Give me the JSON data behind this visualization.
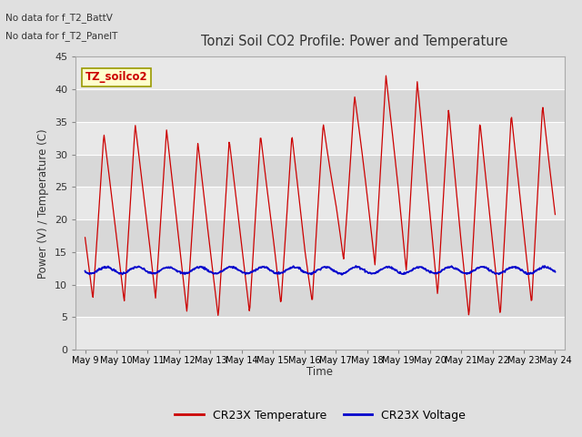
{
  "title": "Tonzi Soil CO2 Profile: Power and Temperature",
  "ylabel": "Power (V) / Temperature (C)",
  "xlabel": "Time",
  "ylim": [
    0,
    45
  ],
  "yticks": [
    0,
    5,
    10,
    15,
    20,
    25,
    30,
    35,
    40,
    45
  ],
  "no_data_text1": "No data for f_T2_BattV",
  "no_data_text2": "No data for f_T2_PanelT",
  "legend_label_red": "CR23X Temperature",
  "legend_label_blue": "CR23X Voltage",
  "box_label": "TZ_soilco2",
  "x_tick_labels": [
    "May 9",
    "May 10",
    "May 11",
    "May 12",
    "May 13",
    "May 14",
    "May 15",
    "May 16",
    "May 17",
    "May 18",
    "May 19",
    "May 20",
    "May 21",
    "May 22",
    "May 23",
    "May 24"
  ],
  "bg_color": "#e0e0e0",
  "plot_bg_light": "#e8e8e8",
  "plot_bg_dark": "#d8d8d8",
  "grid_color": "#ffffff",
  "temp_color": "#cc0000",
  "volt_color": "#0000cc",
  "box_facecolor": "#ffffcc",
  "box_edgecolor": "#999900",
  "band_colors": [
    "#e8e8e8",
    "#d8d8d8",
    "#e8e8e8",
    "#d8d8d8",
    "#e8e8e8",
    "#d8d8d8",
    "#e8e8e8",
    "#d8d8d8",
    "#e8e8e8"
  ],
  "day_maxes": [
    32,
    34,
    35,
    33,
    31,
    33,
    33,
    33,
    36,
    41,
    43,
    40,
    35,
    35,
    37,
    38
  ],
  "day_mins": [
    8,
    7,
    8.5,
    6,
    5,
    5,
    7.5,
    5,
    14,
    13,
    13,
    9.5,
    5,
    5,
    6,
    10
  ],
  "volt_base": 12.2,
  "volt_amp": 0.5
}
